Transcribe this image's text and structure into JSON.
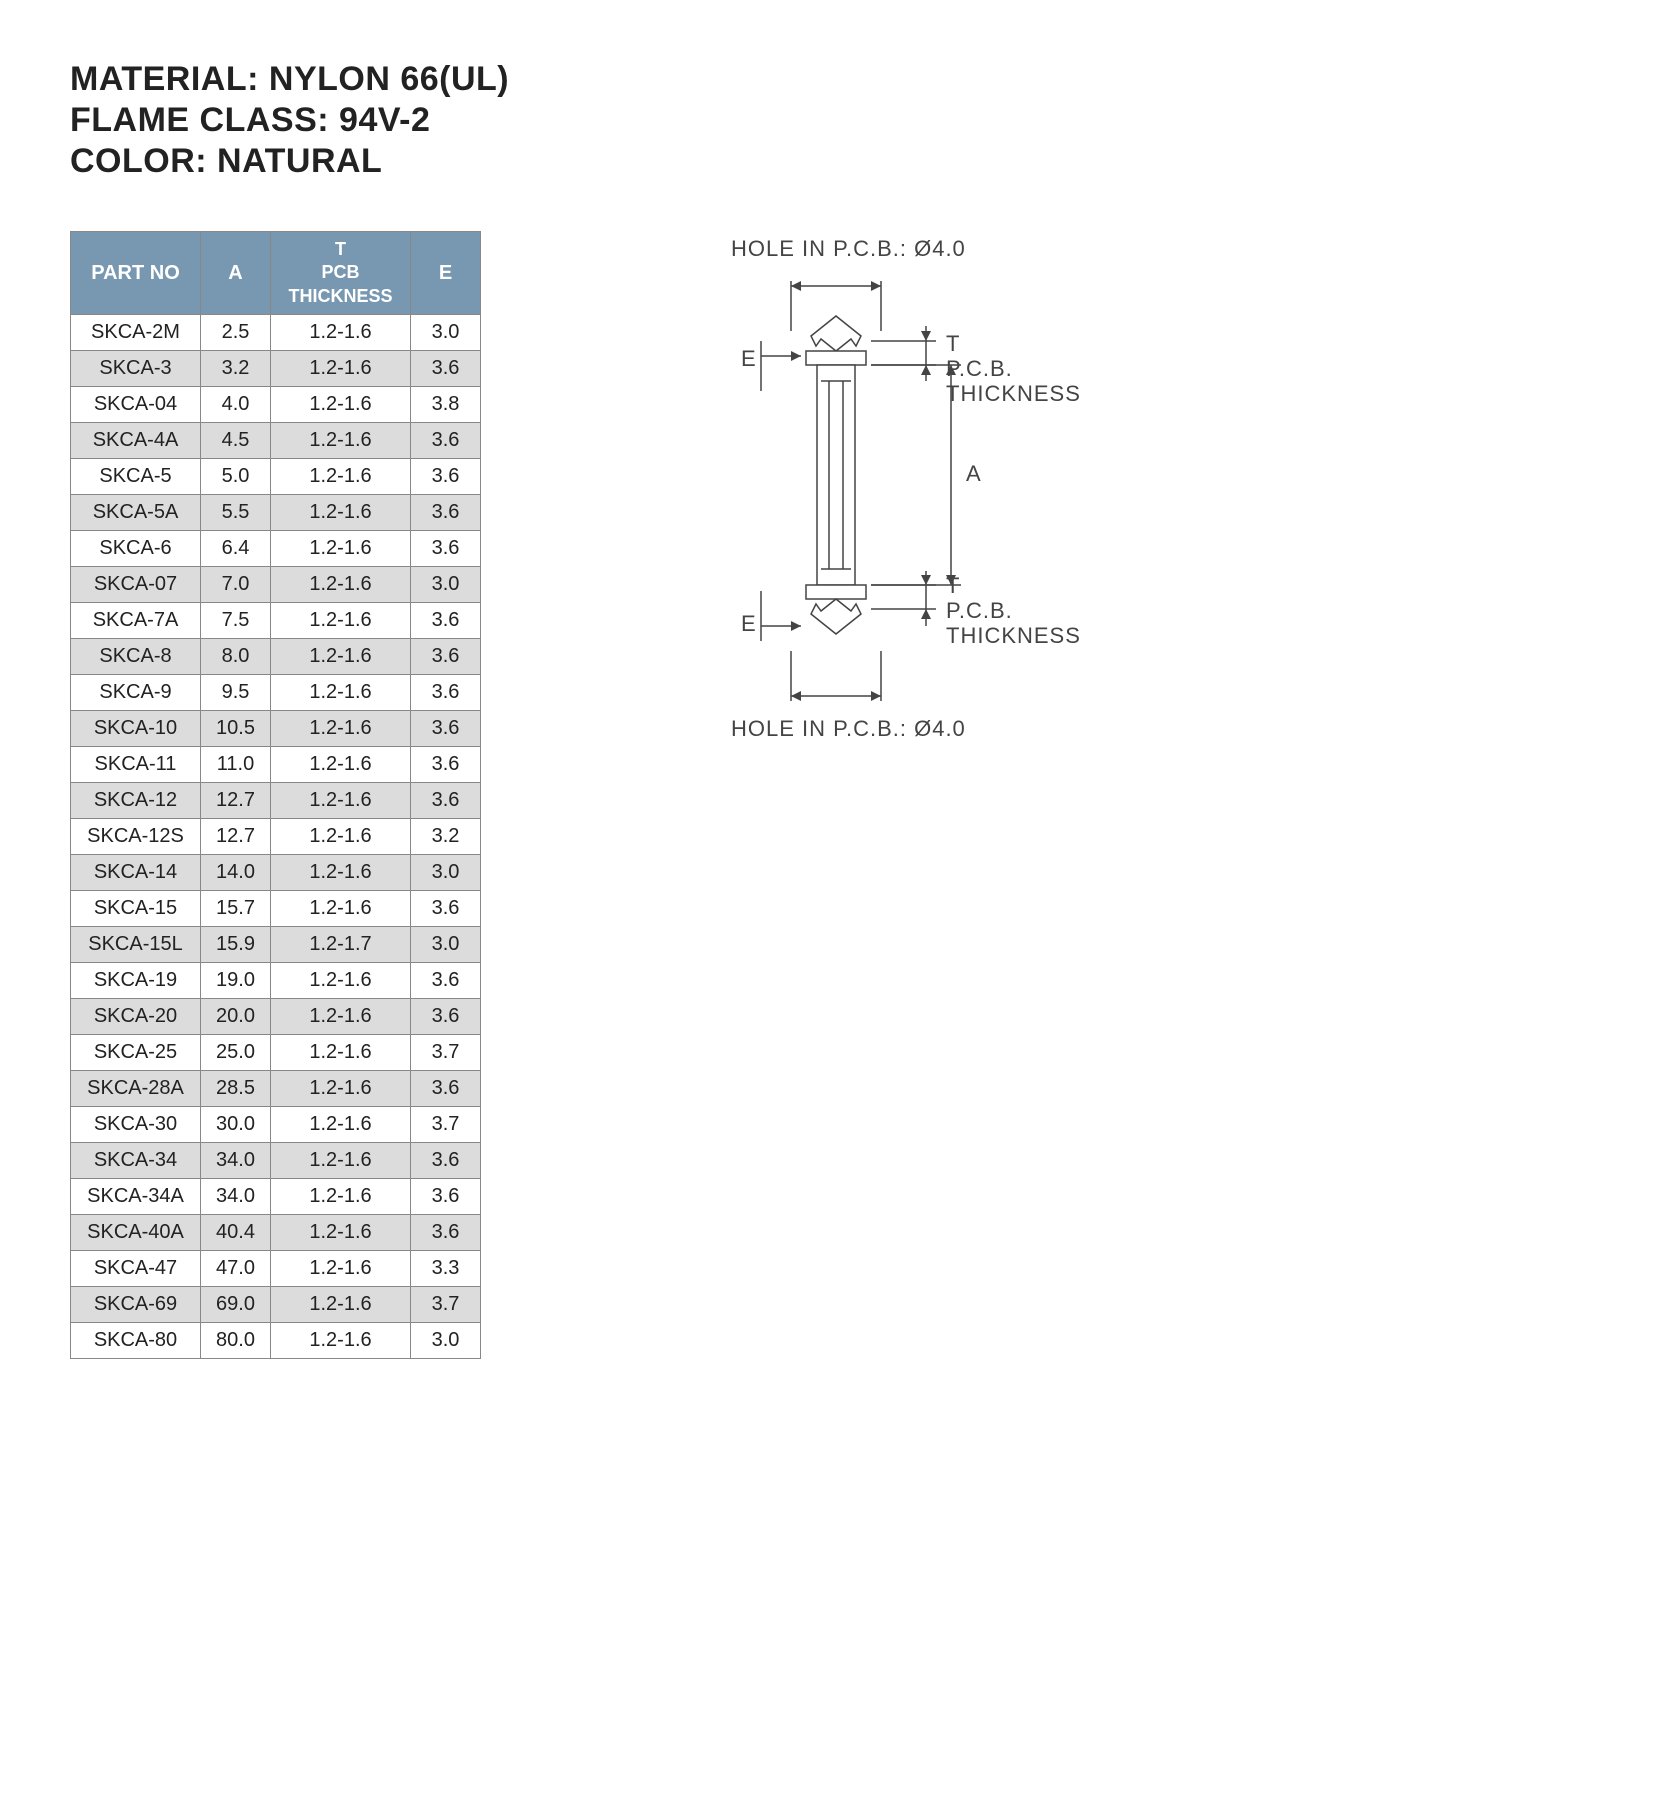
{
  "header": {
    "material": "MATERIAL: NYLON 66(UL)",
    "flame": "FLAME CLASS: 94V-2",
    "color": "COLOR: NATURAL"
  },
  "table": {
    "columns": {
      "part_no": "PART NO",
      "a": "A",
      "t_line1": "T",
      "t_line2": "PCB",
      "t_line3": "THICKNESS",
      "e": "E"
    },
    "rows": [
      [
        "SKCA-2M",
        "2.5",
        "1.2-1.6",
        "3.0"
      ],
      [
        "SKCA-3",
        "3.2",
        "1.2-1.6",
        "3.6"
      ],
      [
        "SKCA-04",
        "4.0",
        "1.2-1.6",
        "3.8"
      ],
      [
        "SKCA-4A",
        "4.5",
        "1.2-1.6",
        "3.6"
      ],
      [
        "SKCA-5",
        "5.0",
        "1.2-1.6",
        "3.6"
      ],
      [
        "SKCA-5A",
        "5.5",
        "1.2-1.6",
        "3.6"
      ],
      [
        "SKCA-6",
        "6.4",
        "1.2-1.6",
        "3.6"
      ],
      [
        "SKCA-07",
        "7.0",
        "1.2-1.6",
        "3.0"
      ],
      [
        "SKCA-7A",
        "7.5",
        "1.2-1.6",
        "3.6"
      ],
      [
        "SKCA-8",
        "8.0",
        "1.2-1.6",
        "3.6"
      ],
      [
        "SKCA-9",
        "9.5",
        "1.2-1.6",
        "3.6"
      ],
      [
        "SKCA-10",
        "10.5",
        "1.2-1.6",
        "3.6"
      ],
      [
        "SKCA-11",
        "11.0",
        "1.2-1.6",
        "3.6"
      ],
      [
        "SKCA-12",
        "12.7",
        "1.2-1.6",
        "3.6"
      ],
      [
        "SKCA-12S",
        "12.7",
        "1.2-1.6",
        "3.2"
      ],
      [
        "SKCA-14",
        "14.0",
        "1.2-1.6",
        "3.0"
      ],
      [
        "SKCA-15",
        "15.7",
        "1.2-1.6",
        "3.6"
      ],
      [
        "SKCA-15L",
        "15.9",
        "1.2-1.7",
        "3.0"
      ],
      [
        "SKCA-19",
        "19.0",
        "1.2-1.6",
        "3.6"
      ],
      [
        "SKCA-20",
        "20.0",
        "1.2-1.6",
        "3.6"
      ],
      [
        "SKCA-25",
        "25.0",
        "1.2-1.6",
        "3.7"
      ],
      [
        "SKCA-28A",
        "28.5",
        "1.2-1.6",
        "3.6"
      ],
      [
        "SKCA-30",
        "30.0",
        "1.2-1.6",
        "3.7"
      ],
      [
        "SKCA-34",
        "34.0",
        "1.2-1.6",
        "3.6"
      ],
      [
        "SKCA-34A",
        "34.0",
        "1.2-1.6",
        "3.6"
      ],
      [
        "SKCA-40A",
        "40.4",
        "1.2-1.6",
        "3.6"
      ],
      [
        "SKCA-47",
        "47.0",
        "1.2-1.6",
        "3.3"
      ],
      [
        "SKCA-69",
        "69.0",
        "1.2-1.6",
        "3.7"
      ],
      [
        "SKCA-80",
        "80.0",
        "1.2-1.6",
        "3.0"
      ]
    ]
  },
  "diagram": {
    "hole_top": "HOLE  IN  P.C.B.:  Ø4.0",
    "hole_bottom": "HOLE  IN  P.C.B.:  Ø4.0",
    "label_E": "E",
    "label_A": "A",
    "label_T": "T",
    "label_pcb": "P.C.B.",
    "label_thickness": "THICKNESS"
  }
}
